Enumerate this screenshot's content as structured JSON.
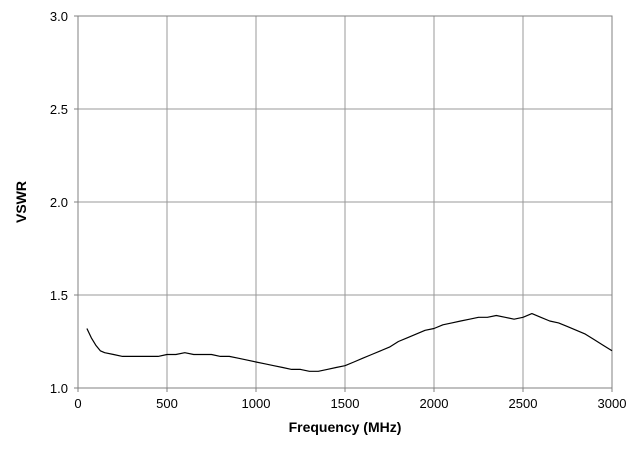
{
  "chart_data": {
    "type": "line",
    "title": "",
    "xlabel": "Frequency (MHz)",
    "ylabel": "VSWR",
    "xlim": [
      0,
      3000
    ],
    "ylim": [
      1.0,
      3.0
    ],
    "grid": true,
    "legend": "none",
    "x_ticks": [
      "0",
      "500",
      "1000",
      "1500",
      "2000",
      "2500",
      "3000"
    ],
    "y_ticks": [
      "1.0",
      "1.5",
      "2.0",
      "2.5",
      "3.0"
    ],
    "line_color": "#000000",
    "grid_color": "#999999",
    "series": [
      {
        "x": [
          50,
          75,
          100,
          125,
          150,
          200,
          250,
          300,
          350,
          400,
          450,
          500,
          550,
          600,
          650,
          700,
          750,
          800,
          850,
          900,
          950,
          1000,
          1050,
          1100,
          1150,
          1200,
          1250,
          1300,
          1350,
          1400,
          1450,
          1500,
          1550,
          1600,
          1650,
          1700,
          1750,
          1800,
          1850,
          1900,
          1950,
          2000,
          2050,
          2100,
          2150,
          2200,
          2250,
          2300,
          2350,
          2400,
          2450,
          2500,
          2550,
          2600,
          2650,
          2700,
          2750,
          2800,
          2850,
          2900,
          2950,
          3000
        ],
        "y": [
          1.32,
          1.27,
          1.23,
          1.2,
          1.19,
          1.18,
          1.17,
          1.17,
          1.17,
          1.17,
          1.17,
          1.18,
          1.18,
          1.19,
          1.18,
          1.18,
          1.18,
          1.17,
          1.17,
          1.16,
          1.15,
          1.14,
          1.13,
          1.12,
          1.11,
          1.1,
          1.1,
          1.09,
          1.09,
          1.1,
          1.11,
          1.12,
          1.14,
          1.16,
          1.18,
          1.2,
          1.22,
          1.25,
          1.27,
          1.29,
          1.31,
          1.32,
          1.34,
          1.35,
          1.36,
          1.37,
          1.38,
          1.38,
          1.39,
          1.38,
          1.37,
          1.38,
          1.4,
          1.38,
          1.36,
          1.35,
          1.33,
          1.31,
          1.29,
          1.26,
          1.23,
          1.2
        ]
      }
    ]
  }
}
